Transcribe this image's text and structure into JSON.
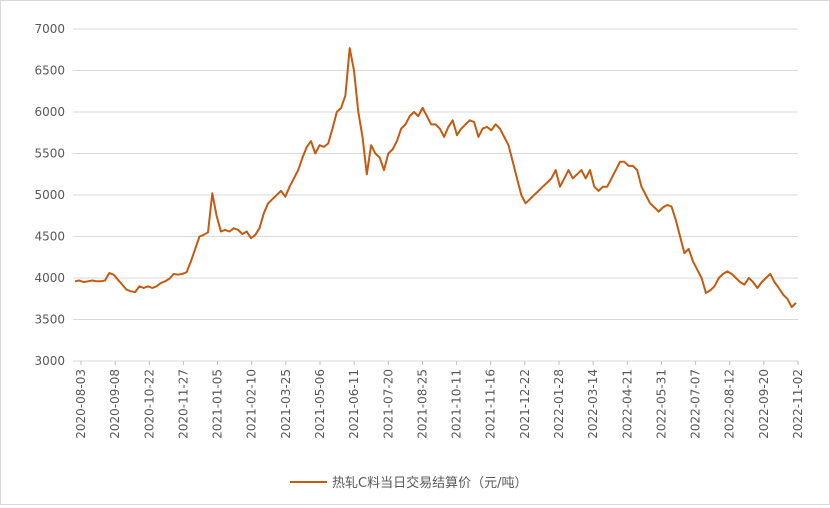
{
  "chart_data": {
    "type": "line",
    "title": "",
    "xlabel": "",
    "ylabel": "",
    "ylim": [
      3000,
      7000
    ],
    "y_ticks": [
      "3000",
      "3500",
      "4000",
      "4500",
      "5000",
      "5500",
      "6000",
      "6500",
      "7000"
    ],
    "x_ticks": [
      "2020-08-03",
      "2020-09-08",
      "2020-10-22",
      "2020-11-27",
      "2021-01-05",
      "2021-02-10",
      "2021-03-25",
      "2021-05-06",
      "2021-06-11",
      "2021-07-20",
      "2021-08-25",
      "2021-10-11",
      "2021-11-16",
      "2021-12-22",
      "2022-01-28",
      "2022-03-14",
      "2022-04-21",
      "2022-05-31",
      "2022-07-07",
      "2022-08-12",
      "2022-09-20",
      "2022-11-02"
    ],
    "grid": "horizontal",
    "legend_position": "bottom",
    "series": [
      {
        "name": "热轧C料当日交易结算价（元/吨）",
        "color": "#C55A11",
        "values": [
          3960,
          3970,
          3950,
          3960,
          3970,
          3960,
          3960,
          3970,
          4060,
          4040,
          3980,
          3920,
          3860,
          3840,
          3830,
          3900,
          3880,
          3900,
          3880,
          3900,
          3940,
          3960,
          3990,
          4050,
          4040,
          4050,
          4070,
          4200,
          4350,
          4500,
          4520,
          4550,
          5020,
          4750,
          4560,
          4580,
          4560,
          4600,
          4580,
          4530,
          4560,
          4480,
          4520,
          4600,
          4780,
          4900,
          4950,
          5000,
          5050,
          4980,
          5100,
          5200,
          5300,
          5450,
          5580,
          5650,
          5500,
          5600,
          5580,
          5620,
          5800,
          6000,
          6050,
          6200,
          6770,
          6500,
          6000,
          5700,
          5250,
          5600,
          5500,
          5450,
          5300,
          5500,
          5550,
          5650,
          5800,
          5850,
          5950,
          6000,
          5950,
          6050,
          5950,
          5850,
          5850,
          5800,
          5700,
          5820,
          5900,
          5720,
          5800,
          5850,
          5900,
          5880,
          5700,
          5800,
          5820,
          5780,
          5850,
          5800,
          5700,
          5600,
          5400,
          5200,
          5000,
          4900,
          4950,
          5000,
          5050,
          5100,
          5150,
          5200,
          5300,
          5100,
          5200,
          5300,
          5200,
          5250,
          5300,
          5200,
          5300,
          5100,
          5050,
          5100,
          5100,
          5200,
          5300,
          5400,
          5400,
          5350,
          5350,
          5300,
          5100,
          5000,
          4900,
          4850,
          4800,
          4850,
          4880,
          4860,
          4700,
          4500,
          4300,
          4350,
          4200,
          4100,
          4000,
          3820,
          3850,
          3900,
          4000,
          4050,
          4080,
          4050,
          4000,
          3950,
          3920,
          4000,
          3950,
          3880,
          3950,
          4000,
          4050,
          3950,
          3880,
          3800,
          3750,
          3650,
          3700
        ]
      }
    ]
  }
}
